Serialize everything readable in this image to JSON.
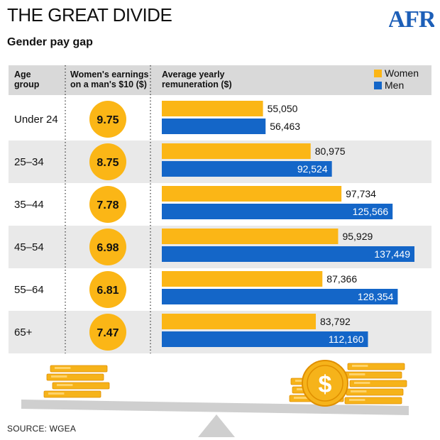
{
  "header": {
    "title": "THE GREAT DIVIDE",
    "subtitle": "Gender pay gap",
    "logo_text": "AFR"
  },
  "source": "SOURCE: WGEA",
  "colors": {
    "women": "#fbb616",
    "men": "#1466c8",
    "header_bg": "#d9d9d9",
    "row_alt_bg": "#e9e9e9",
    "logo": "#1d5fb8",
    "scale": "#cfcfcf"
  },
  "chart_data": {
    "type": "bar",
    "orientation": "horizontal",
    "columns": {
      "group": "Age\ngroup",
      "ratio": "Women's earnings\non a man's $10 ($)",
      "pay": "Average yearly\nremuneration ($)"
    },
    "categories": [
      "Under 24",
      "25–34",
      "35–44",
      "45–54",
      "55–64",
      "65+"
    ],
    "ratio_values": [
      "9.75",
      "8.75",
      "7.78",
      "6.98",
      "6.81",
      "7.47"
    ],
    "series": [
      {
        "name": "Women",
        "values": [
          55050,
          80975,
          97734,
          95929,
          87366,
          83792
        ],
        "labels": [
          "55,050",
          "80,975",
          "97,734",
          "95,929",
          "87,366",
          "83,792"
        ]
      },
      {
        "name": "Men",
        "values": [
          56463,
          92524,
          125566,
          137449,
          128354,
          112160
        ],
        "labels": [
          "56,463",
          "92,524",
          "125,566",
          "137,449",
          "128,354",
          "112,160"
        ]
      }
    ],
    "legend": "top-right"
  }
}
